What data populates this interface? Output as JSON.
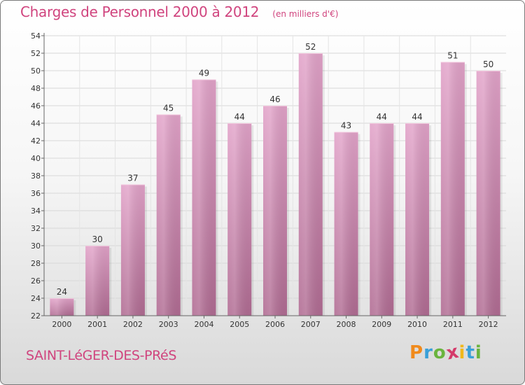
{
  "chart_data": {
    "type": "bar",
    "title": "Charges de Personnel 2000 à 2012",
    "unit_label": "(en milliers d'€)",
    "categories": [
      "2000",
      "2001",
      "2002",
      "2003",
      "2004",
      "2005",
      "2006",
      "2007",
      "2008",
      "2009",
      "2010",
      "2011",
      "2012"
    ],
    "values": [
      24,
      30,
      37,
      45,
      49,
      44,
      46,
      52,
      43,
      44,
      44,
      51,
      50
    ],
    "data_labels": [
      "24",
      "30",
      "37",
      "45",
      "49",
      "44",
      "46",
      "52",
      "43",
      "44",
      "44",
      "51",
      "50"
    ],
    "ylim": [
      22,
      54
    ],
    "y_ticks": [
      "22",
      "24",
      "26",
      "28",
      "30",
      "32",
      "34",
      "36",
      "38",
      "40",
      "42",
      "44",
      "46",
      "48",
      "50",
      "52",
      "54"
    ],
    "grid": true,
    "colors": {
      "bar_top": "#e2a3c9",
      "bar_bottom": "#b06b92",
      "bar_highlight": "#f2c6dd",
      "grid": "#d8d8d8",
      "text": "#333333",
      "title": "#d0447e"
    }
  },
  "footer": {
    "commune": "SAINT-LéGER-DES-PRéS",
    "logo_letters": [
      "P",
      "r",
      "o",
      "x",
      "i",
      "t",
      "i"
    ],
    "logo_colors": [
      "#f08a1c",
      "#3aa0d8",
      "#6ab43e",
      "#d43a6a",
      "#f0b81c",
      "#3aa0d8",
      "#6ab43e"
    ]
  }
}
